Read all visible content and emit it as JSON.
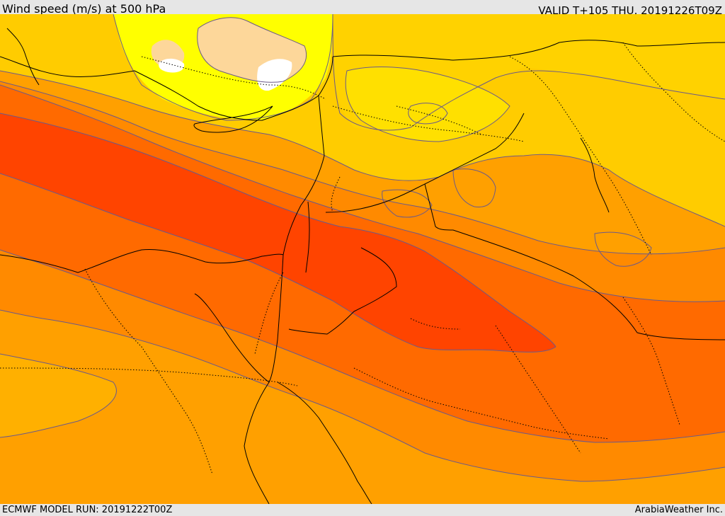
{
  "header": {
    "title": "Wind speed (m/s) at 500 hPa",
    "valid": "VALID T+105 THU. 20191226T09Z"
  },
  "footer": {
    "model_run": "ECMWF MODEL RUN: 20191222T00Z",
    "credit": "ArabiaWeather Inc."
  },
  "map": {
    "field": "wind-speed-500hPa",
    "palette": {
      "calm": "#ffffff",
      "very_light": "#fdd79a",
      "light": "#ffff00",
      "moderate_low": "#ffe000",
      "moderate": "#ffc000",
      "moderate_high": "#ffa500",
      "strong": "#ff8200",
      "very_strong": "#ff6600",
      "jet_core": "#ff4500"
    },
    "contour_color": "#6b5a8a",
    "coastline_color": "#000000",
    "border_style": "dotted"
  }
}
